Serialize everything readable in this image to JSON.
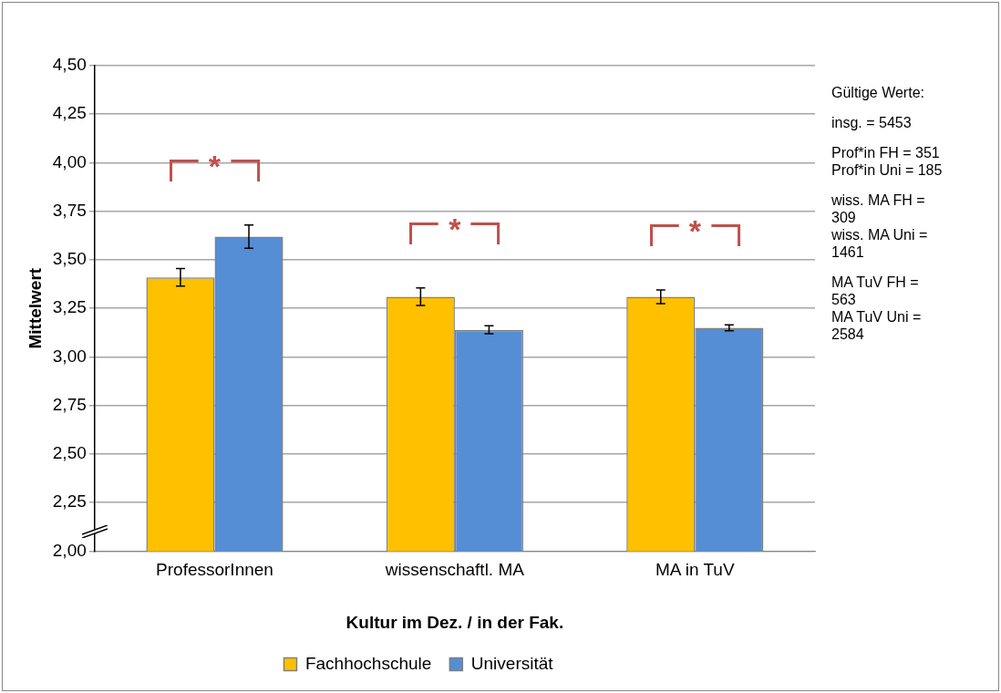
{
  "chart_data": {
    "type": "bar",
    "xlabel": "Kultur im Dez. / in der Fak.",
    "ylabel": "Mittelwert",
    "categories": [
      "ProfessorInnen",
      "wissenschaftl. MA",
      "MA in TuV"
    ],
    "series": [
      {
        "name": "Fachhochschule",
        "color": "#ffc000",
        "values": [
          3.41,
          3.31,
          3.31
        ],
        "errors": [
          0.045,
          0.045,
          0.035
        ]
      },
      {
        "name": "Universität",
        "color": "#558ed5",
        "values": [
          3.62,
          3.14,
          3.15
        ],
        "errors": [
          0.06,
          0.02,
          0.015
        ]
      }
    ],
    "ylim": [
      2,
      4.5
    ],
    "yticks": [
      {
        "value": 2,
        "label": "2,00"
      },
      {
        "value": 2.25,
        "label": "2,25"
      },
      {
        "value": 2.5,
        "label": "2,50"
      },
      {
        "value": 2.75,
        "label": "2,75"
      },
      {
        "value": 3,
        "label": "3,00"
      },
      {
        "value": 3.25,
        "label": "3,25"
      },
      {
        "value": 3.5,
        "label": "3,50"
      },
      {
        "value": 3.75,
        "label": "3,75"
      },
      {
        "value": 4,
        "label": "4,00"
      },
      {
        "value": 4.25,
        "label": "4,25"
      },
      {
        "value": 4.5,
        "label": "4,50"
      }
    ],
    "grid": "y",
    "legend": "bottom",
    "annotations": [
      "*",
      "*",
      "*",
      "Gültige Werte:",
      "insg. = 5453",
      "Prof*in FH = 351",
      "Prof*in Uni = 185",
      "wiss. MA FH = 309",
      "wiss. MA Uni =  1461",
      "MA TuV FH = 563",
      "MA TuV Uni = 2584"
    ]
  }
}
